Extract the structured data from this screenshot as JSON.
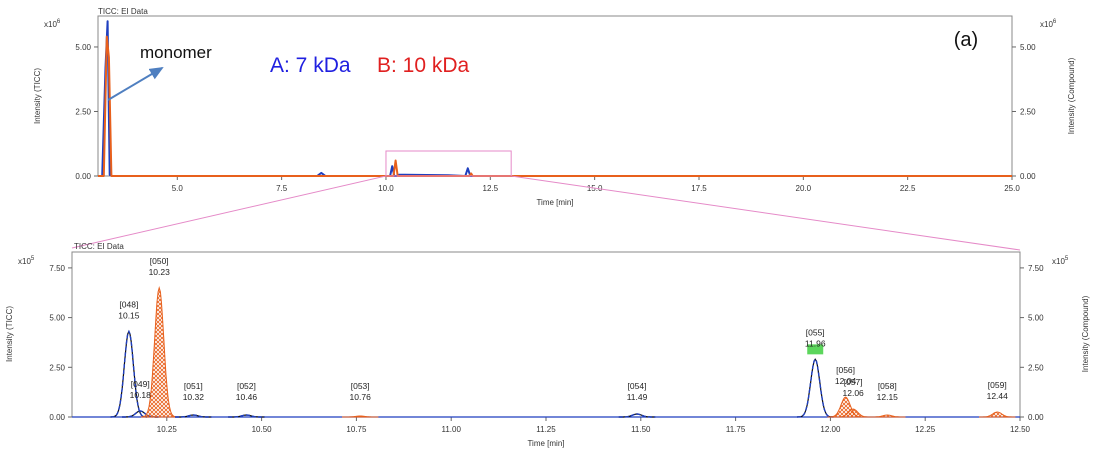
{
  "panel_label": "(a)",
  "colors": {
    "seriesA": "#1f3fbf",
    "seriesB": "#e8601c",
    "zoom_box": "#e58ac8",
    "annot_label_A": "#2020e0",
    "annot_label_B": "#e02020",
    "arrow": "#4f7fc0",
    "peak_highlight": "#3fcf3f"
  },
  "annotations": {
    "monomer": "monomer",
    "label_A": "A: 7 kDa",
    "label_B": "B: 10 kDa"
  },
  "chart_data": [
    {
      "type": "line",
      "title": "TICC: EI Data",
      "xlabel": "Time [min]",
      "ylabel": "Intensity (TICC)",
      "ylabel_right": "Intensity (Compound)",
      "exponent": "x10",
      "exponent_power": "6",
      "xlim": [
        3.1,
        25.0
      ],
      "ylim": [
        0,
        6.2
      ],
      "x_ticks": [
        "5.0",
        "7.5",
        "10.0",
        "12.5",
        "15.0",
        "17.5",
        "20.0",
        "22.5",
        "25.0"
      ],
      "x_tick_values": [
        5.0,
        7.5,
        10.0,
        12.5,
        15.0,
        17.5,
        20.0,
        22.5,
        25.0
      ],
      "y_ticks": [
        "0.00",
        "2.50",
        "5.00"
      ],
      "y_tick_values": [
        0,
        2.5,
        5.0
      ],
      "zoom_range": [
        10.0,
        13.0
      ],
      "series": [
        {
          "color_key": "seriesA",
          "x": [
            3.1,
            3.2,
            3.28,
            3.33,
            3.38,
            3.44,
            3.5,
            4.0,
            8.35,
            8.45,
            8.55,
            10.1,
            10.15,
            10.2,
            10.25,
            10.32,
            10.46,
            11.49,
            11.9,
            11.96,
            12.02,
            12.5,
            25.0
          ],
          "y": [
            0,
            0,
            4.2,
            6.0,
            0.05,
            0,
            0,
            0,
            0,
            0.12,
            0,
            0,
            0.38,
            0,
            0,
            0.05,
            0.05,
            0.03,
            0,
            0.3,
            0,
            0,
            0
          ]
        },
        {
          "color_key": "seriesB",
          "x": [
            3.1,
            3.24,
            3.31,
            3.36,
            3.42,
            10.1,
            10.18,
            10.23,
            10.28,
            10.4,
            12.0,
            12.04,
            12.08,
            25.0
          ],
          "y": [
            0,
            0,
            5.4,
            4.6,
            0,
            0,
            0,
            0.6,
            0,
            0,
            0,
            0.1,
            0,
            0
          ]
        }
      ]
    },
    {
      "type": "line",
      "title": "TICC: EI Data",
      "xlabel": "Time [min]",
      "ylabel": "Intensity (TICC)",
      "ylabel_right": "Intensity (Compound)",
      "exponent": "x10",
      "exponent_power": "5",
      "xlim": [
        10.0,
        12.5
      ],
      "ylim": [
        0,
        8.3
      ],
      "x_ticks": [
        "10.25",
        "10.50",
        "10.75",
        "11.00",
        "11.25",
        "11.50",
        "11.75",
        "12.00",
        "12.25",
        "12.50"
      ],
      "x_tick_values": [
        10.25,
        10.5,
        10.75,
        11.0,
        11.25,
        11.5,
        11.75,
        12.0,
        12.25,
        12.5
      ],
      "y_ticks": [
        "0.00",
        "2.50",
        "5.00",
        "7.50"
      ],
      "y_tick_values": [
        0,
        2.5,
        5.0,
        7.5
      ],
      "peaks": [
        {
          "id": "[048]",
          "time": "10.15",
          "rt": 10.15,
          "height": 4.3,
          "series": "A"
        },
        {
          "id": "[049]",
          "time": "10.18",
          "rt": 10.18,
          "height": 0.3,
          "series": "A"
        },
        {
          "id": "[050]",
          "time": "10.23",
          "rt": 10.23,
          "height": 6.5,
          "series": "B"
        },
        {
          "id": "[051]",
          "time": "10.32",
          "rt": 10.32,
          "height": 0.1,
          "series": "A"
        },
        {
          "id": "[052]",
          "time": "10.46",
          "rt": 10.46,
          "height": 0.1,
          "series": "A"
        },
        {
          "id": "[053]",
          "time": "10.76",
          "rt": 10.76,
          "height": 0.05,
          "series": "B"
        },
        {
          "id": "[054]",
          "time": "11.49",
          "rt": 11.49,
          "height": 0.15,
          "series": "A"
        },
        {
          "id": "[055]",
          "time": "11.96",
          "rt": 11.96,
          "height": 2.9,
          "series": "A"
        },
        {
          "id": "[056]",
          "time": "12.04",
          "rt": 12.04,
          "height": 1.0,
          "series": "B"
        },
        {
          "id": "[057]",
          "time": "12.06",
          "rt": 12.06,
          "height": 0.4,
          "series": "B"
        },
        {
          "id": "[058]",
          "time": "12.15",
          "rt": 12.15,
          "height": 0.1,
          "series": "B"
        },
        {
          "id": "[059]",
          "time": "12.44",
          "rt": 12.44,
          "height": 0.25,
          "series": "B"
        }
      ]
    }
  ]
}
